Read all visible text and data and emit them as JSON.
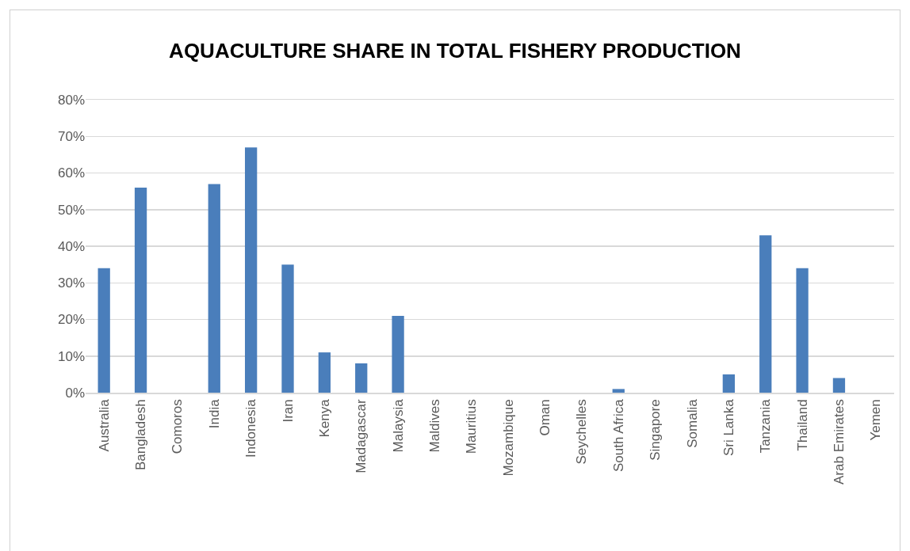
{
  "chart_data": {
    "type": "bar",
    "title": "AQUACULTURE SHARE IN TOTAL FISHERY PRODUCTION",
    "categories": [
      "Australia",
      "Bangladesh",
      "Comoros",
      "India",
      "Indonesia",
      "Iran",
      "Kenya",
      "Madagascar",
      "Malaysia",
      "Maldives",
      "Mauritius",
      "Mozambique",
      "Oman",
      "Seychelles",
      "South Africa",
      "Singapore",
      "Somalia",
      "Sri Lanka",
      "Tanzania",
      "Thailand",
      "Arab Emirates",
      "Yemen"
    ],
    "values": [
      34,
      56,
      0,
      57,
      67,
      35,
      11,
      8,
      21,
      0,
      0,
      0,
      0,
      0,
      1,
      0,
      0,
      5,
      43,
      34,
      4,
      0
    ],
    "color": "#4a7ebb",
    "ylim": [
      0,
      80
    ],
    "yticks": [
      {
        "value": 0,
        "label": "0%"
      },
      {
        "value": 10,
        "label": "10%"
      },
      {
        "value": 20,
        "label": "20%"
      },
      {
        "value": 30,
        "label": "30%"
      },
      {
        "value": 40,
        "label": "40%"
      },
      {
        "value": 50,
        "label": "50%"
      },
      {
        "value": 60,
        "label": "60%"
      },
      {
        "value": 70,
        "label": "70%"
      },
      {
        "value": 80,
        "label": "80%"
      }
    ],
    "grid": "y"
  }
}
